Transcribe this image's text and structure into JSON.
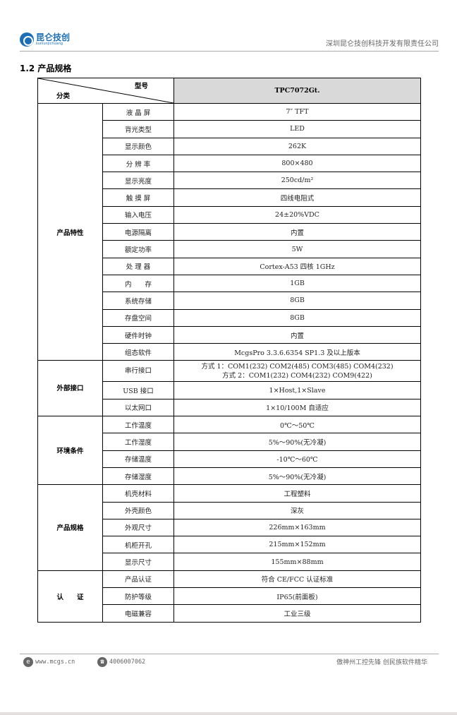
{
  "header": {
    "logo_text": "昆仑技创",
    "logo_sub": "kunlunjichuang",
    "company": "深圳昆仑技创科技开发有限责任公司"
  },
  "section_title": "1.2 产品规格",
  "table": {
    "header_model_label": "型号",
    "header_category_label": "分类",
    "model": "TPC7072Gt.",
    "groups": [
      {
        "category": "产品特性",
        "rows": [
          [
            "液 晶 屏",
            "7″ TFT"
          ],
          [
            "背光类型",
            "LED"
          ],
          [
            "显示颜色",
            "262K"
          ],
          [
            "分 辨 率",
            "800×480"
          ],
          [
            "显示亮度",
            "250cd/m²"
          ],
          [
            "触 摸 屏",
            "四线电阻式"
          ],
          [
            "输入电压",
            "24±20%VDC"
          ],
          [
            "电源隔离",
            "内置"
          ],
          [
            "额定功率",
            "5W"
          ],
          [
            "处 理 器",
            "Cortex-A53 四核 1GHz"
          ],
          [
            "内　　存",
            "1GB"
          ],
          [
            "系统存储",
            "8GB"
          ],
          [
            "存盘空间",
            "8GB"
          ],
          [
            "硬件时钟",
            "内置"
          ],
          [
            "组态软件",
            "McgsPro 3.3.6.6354 SP1.3 及以上版本"
          ]
        ]
      },
      {
        "category": "外部接口",
        "rows": [
          [
            "串行接口",
            "方式 1：COM1(232) COM2(485) COM3(485) COM4(232)",
            "方式 2：COM1(232) COM4(232) COM9(422)"
          ],
          [
            "USB 接口",
            "1×Host,1×Slave"
          ],
          [
            "以太网口",
            "1×10/100M 自适应"
          ]
        ]
      },
      {
        "category": "环境条件",
        "rows": [
          [
            "工作温度",
            "0℃～50℃"
          ],
          [
            "工作湿度",
            "5%～90%(无冷凝)"
          ],
          [
            "存储温度",
            "-10℃～60℃"
          ],
          [
            "存储湿度",
            "5%～90%(无冷凝)"
          ]
        ]
      },
      {
        "category": "产品规格",
        "rows": [
          [
            "机壳材料",
            "工程塑料"
          ],
          [
            "外壳颜色",
            "深灰"
          ],
          [
            "外观尺寸",
            "226mm×163mm"
          ],
          [
            "机柜开孔",
            "215mm×152mm"
          ],
          [
            "显示尺寸",
            "155mm×88mm"
          ]
        ]
      },
      {
        "category": "认　　证",
        "rows": [
          [
            "产品认证",
            "符合 CE/FCC 认证标准"
          ],
          [
            "防护等级",
            "IP65(前面板)"
          ],
          [
            "电磁兼容",
            "工业三级"
          ]
        ]
      }
    ]
  },
  "footer": {
    "website": "www.mcgs.cn",
    "phone": "4006007062",
    "slogan": "傲神州工控先锋 创民族软件精华"
  }
}
